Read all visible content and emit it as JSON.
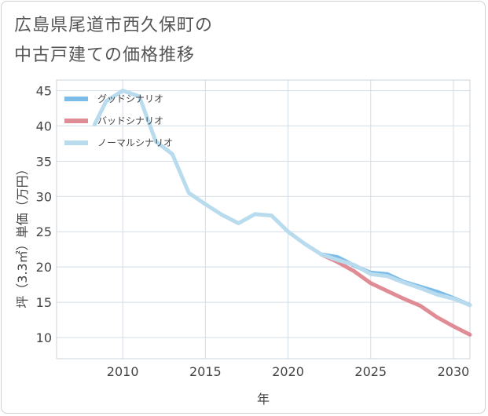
{
  "chart_data": {
    "type": "line",
    "title": "広島県尾道市西久保町の中古戸建ての価格推移",
    "title_lines": [
      "広島県尾道市西久保町の",
      "中古戸建ての価格推移"
    ],
    "xlabel": "年",
    "ylabel": "坪（3.3㎡）単価（万円）",
    "xlim": [
      2006,
      2031
    ],
    "ylim": [
      7,
      46.5
    ],
    "x_ticks": [
      2010,
      2015,
      2020,
      2025,
      2030
    ],
    "y_ticks": [
      10,
      15,
      20,
      25,
      30,
      35,
      40,
      45
    ],
    "grid": true,
    "legend_position": "top-left",
    "series": [
      {
        "name": "グッドシナリオ",
        "color": "#7bbde8",
        "x": [
          2022,
          2023,
          2024,
          2025,
          2026,
          2027,
          2028,
          2029,
          2030,
          2031
        ],
        "y": [
          21.8,
          21.4,
          20.2,
          19.2,
          19.0,
          17.9,
          17.2,
          16.5,
          15.6,
          14.6
        ]
      },
      {
        "name": "バッドシナリオ",
        "color": "#e08c94",
        "x": [
          2022,
          2023,
          2024,
          2025,
          2026,
          2027,
          2028,
          2029,
          2030,
          2031
        ],
        "y": [
          21.8,
          20.7,
          19.4,
          17.7,
          16.6,
          15.5,
          14.5,
          12.9,
          11.6,
          10.4
        ]
      },
      {
        "name": "ノーマルシナリオ",
        "color": "#b9dbee",
        "x": [
          2008.3,
          2009,
          2010,
          2011,
          2012,
          2013,
          2014,
          2015,
          2016,
          2017,
          2018,
          2019,
          2020,
          2021,
          2022,
          2023,
          2024,
          2025,
          2026,
          2027,
          2028,
          2029,
          2030,
          2031
        ],
        "y": [
          40.2,
          43.5,
          45.0,
          44.2,
          37.8,
          36.0,
          30.5,
          28.9,
          27.4,
          26.2,
          27.5,
          27.3,
          25.0,
          23.3,
          21.8,
          21.0,
          20.3,
          19.0,
          18.7,
          17.8,
          17.0,
          16.1,
          15.5,
          14.6
        ]
      }
    ]
  }
}
